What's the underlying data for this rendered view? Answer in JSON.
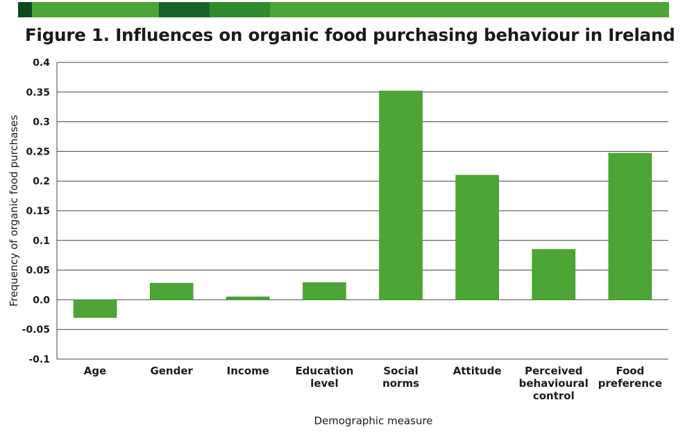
{
  "title": "Figure 1. Influences on organic food purchasing behaviour in Ireland",
  "colors": {
    "bar": "#4ca534",
    "bar_edge": "#3c8f28",
    "grid": "#404040",
    "band": [
      "#0d4a1c",
      "#4ca534",
      "#17622a",
      "#2f8a2c",
      "#4ca534"
    ]
  },
  "chart_data": {
    "type": "bar",
    "title": "Figure 1. Influences on organic food purchasing behaviour in Ireland",
    "xlabel": "Demographic measure",
    "ylabel": "Frequency of organic food purchases",
    "categories": [
      "Age",
      "Gender",
      "Income",
      "Education level",
      "Social norms",
      "Attitude",
      "Perceived behavioural control",
      "Food preference"
    ],
    "category_lines": [
      [
        "Age"
      ],
      [
        "Gender"
      ],
      [
        "Income"
      ],
      [
        "Education",
        "level"
      ],
      [
        "Social",
        "norms"
      ],
      [
        "Attitude"
      ],
      [
        "Perceived",
        "behavioural",
        "control"
      ],
      [
        "Food",
        "preference"
      ]
    ],
    "values": [
      -0.03,
      0.028,
      0.005,
      0.029,
      0.352,
      0.21,
      0.085,
      0.247
    ],
    "ylim": [
      -0.1,
      0.4
    ],
    "yticks": [
      -0.1,
      -0.05,
      0.0,
      0.05,
      0.1,
      0.15,
      0.2,
      0.25,
      0.3,
      0.35,
      0.4
    ],
    "ytick_labels": [
      "-0.1",
      "-0.05",
      "0.0",
      "0.05",
      "0.1",
      "0.15",
      "0.2",
      "0.25",
      "0.3",
      "0.35",
      "0.4"
    ],
    "grid": true,
    "legend": "none"
  }
}
